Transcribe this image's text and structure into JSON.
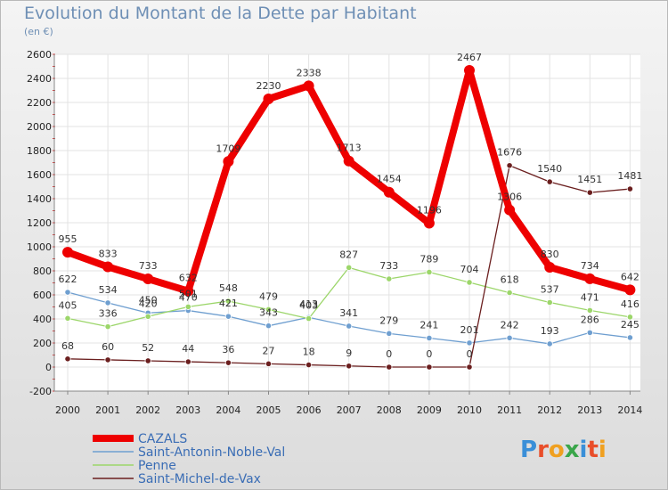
{
  "title": "Evolution du Montant de la Dette par Habitant",
  "subtitle": "(en €)",
  "logo_text": "Proxiti",
  "chart_data": {
    "type": "line",
    "x": [
      "2000",
      "2001",
      "2002",
      "2003",
      "2004",
      "2005",
      "2006",
      "2007",
      "2008",
      "2009",
      "2010",
      "2011",
      "2012",
      "2013",
      "2014"
    ],
    "ylim": [
      -200,
      2600
    ],
    "yticks": [
      -200,
      0,
      200,
      400,
      600,
      800,
      1000,
      1200,
      1400,
      1600,
      1800,
      2000,
      2200,
      2400,
      2600
    ],
    "grid": true,
    "legend_position": "bottom-left",
    "series": [
      {
        "name": "Saint-Antonin-Noble-Val",
        "color": "#6f9fd0",
        "values": [
          622,
          534,
          450,
          470,
          421,
          343,
          413,
          341,
          279,
          241,
          201,
          242,
          193,
          286,
          245
        ]
      },
      {
        "name": "Penne",
        "color": "#9cd66a",
        "values": [
          405,
          336,
          420,
          501,
          548,
          479,
          403,
          827,
          733,
          789,
          704,
          618,
          537,
          471,
          416
        ]
      },
      {
        "name": "Saint-Michel-de-Vax",
        "color": "#6b1f1f",
        "values": [
          68,
          60,
          52,
          44,
          36,
          27,
          18,
          9,
          0,
          0,
          0,
          1676,
          1540,
          1451,
          1481
        ]
      },
      {
        "name": "CAZALS",
        "color": "#ee0000",
        "values": [
          955,
          833,
          733,
          632,
          1709,
          2230,
          2338,
          1713,
          1454,
          1196,
          2467,
          1306,
          830,
          734,
          642
        ]
      }
    ],
    "legend_order": [
      "CAZALS",
      "Saint-Antonin-Noble-Val",
      "Penne",
      "Saint-Michel-de-Vax"
    ]
  }
}
